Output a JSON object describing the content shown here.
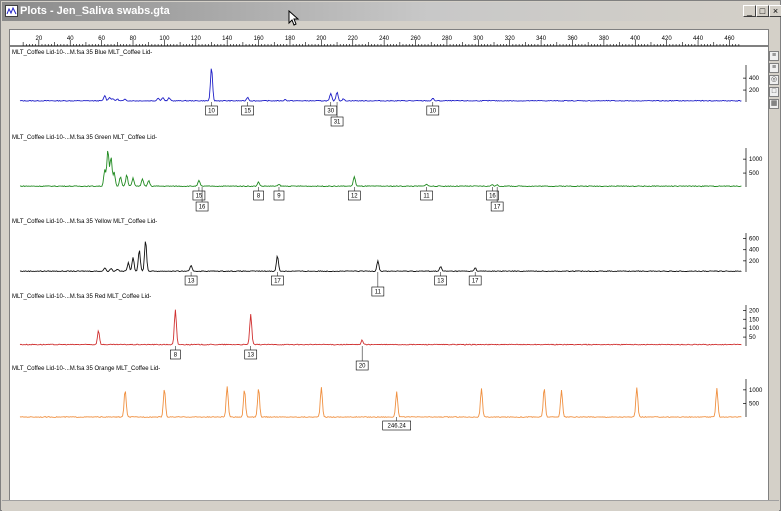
{
  "window": {
    "title": "Plots - Jen_Saliva swabs.gta"
  },
  "ruler": {
    "ticks": [
      "20",
      "40",
      "60",
      "80",
      "100",
      "120",
      "140",
      "160",
      "180",
      "200",
      "220",
      "240",
      "260",
      "280",
      "300",
      "320",
      "340",
      "360",
      "380",
      "400",
      "420",
      "440",
      "460"
    ]
  },
  "chart_data": [
    {
      "type": "line",
      "panel": "blue",
      "title": "MLT_Coffee Lid-10-...M.fsa 35 Blue    MLT_Coffee Lid-",
      "color": "#2020c8",
      "xlim": [
        8,
        468
      ],
      "ylim": [
        0,
        620
      ],
      "y_ticks": [
        "400",
        "200"
      ],
      "y_tick_values": [
        400,
        200
      ],
      "baseline": 20,
      "peaks": [
        [
          62,
          90
        ],
        [
          65,
          60
        ],
        [
          67,
          40
        ],
        [
          70,
          30
        ],
        [
          75,
          25
        ],
        [
          96,
          50
        ],
        [
          99,
          60
        ],
        [
          103,
          50
        ],
        [
          130,
          560
        ],
        [
          153,
          60
        ],
        [
          177,
          20
        ],
        [
          206,
          120
        ],
        [
          210,
          150
        ],
        [
          214,
          30
        ],
        [
          271,
          40
        ]
      ],
      "peak_labels": [
        {
          "x": 130,
          "text": "10",
          "row": 1
        },
        {
          "x": 153,
          "text": "15",
          "row": 1
        },
        {
          "x": 206,
          "text": "30",
          "row": 1
        },
        {
          "x": 210,
          "text": "31",
          "row": 2
        },
        {
          "x": 271,
          "text": "10",
          "row": 1
        }
      ]
    },
    {
      "type": "line",
      "panel": "green",
      "title": "MLT_Coffee Lid-10-...M.fsa 35 Green    MLT_Coffee Lid-",
      "color": "#208a20",
      "xlim": [
        8,
        468
      ],
      "ylim": [
        0,
        1400
      ],
      "y_ticks": [
        "1000",
        "500"
      ],
      "y_tick_values": [
        1000,
        500
      ],
      "baseline": 30,
      "peaks": [
        [
          62,
          600
        ],
        [
          64,
          1300
        ],
        [
          66,
          1050
        ],
        [
          68,
          500
        ],
        [
          72,
          350
        ],
        [
          76,
          400
        ],
        [
          80,
          300
        ],
        [
          86,
          250
        ],
        [
          90,
          200
        ],
        [
          122,
          200
        ],
        [
          160,
          150
        ],
        [
          173,
          60
        ],
        [
          221,
          350
        ],
        [
          267,
          80
        ],
        [
          309,
          60
        ],
        [
          312,
          40
        ]
      ],
      "peak_labels": [
        {
          "x": 122,
          "text": "15",
          "row": 1
        },
        {
          "x": 124,
          "text": "16",
          "row": 2
        },
        {
          "x": 160,
          "text": "8",
          "row": 1
        },
        {
          "x": 173,
          "text": "9",
          "row": 1
        },
        {
          "x": 221,
          "text": "12",
          "row": 1
        },
        {
          "x": 267,
          "text": "11",
          "row": 1
        },
        {
          "x": 309,
          "text": "16",
          "row": 1
        },
        {
          "x": 312,
          "text": "17",
          "row": 2
        }
      ]
    },
    {
      "type": "line",
      "panel": "yellow",
      "title": "MLT_Coffee Lid-10-...M.fsa 35 Yellow    MLT_Coffee Lid-",
      "color": "#101010",
      "xlim": [
        8,
        468
      ],
      "ylim": [
        0,
        700
      ],
      "y_ticks": [
        "600",
        "400",
        "200"
      ],
      "y_tick_values": [
        600,
        400,
        200
      ],
      "baseline": 15,
      "peaks": [
        [
          62,
          60
        ],
        [
          66,
          50
        ],
        [
          70,
          40
        ],
        [
          77,
          150
        ],
        [
          80,
          250
        ],
        [
          84,
          380
        ],
        [
          88,
          560
        ],
        [
          117,
          100
        ],
        [
          172,
          280
        ],
        [
          236,
          190
        ],
        [
          276,
          80
        ],
        [
          298,
          60
        ]
      ],
      "peak_labels": [
        {
          "x": 117,
          "text": "13",
          "row": 1
        },
        {
          "x": 172,
          "text": "17",
          "row": 1
        },
        {
          "x": 236,
          "text": "11",
          "row": 2
        },
        {
          "x": 276,
          "text": "13",
          "row": 1
        },
        {
          "x": 298,
          "text": "17",
          "row": 1
        }
      ]
    },
    {
      "type": "line",
      "panel": "red",
      "title": "MLT_Coffee Lid-10-...M.fsa 35 Red    MLT_Coffee Lid-",
      "color": "#d03030",
      "xlim": [
        8,
        468
      ],
      "ylim": [
        0,
        230
      ],
      "y_ticks": [
        "200",
        "150",
        "100",
        "50"
      ],
      "y_tick_values": [
        200,
        150,
        100,
        50
      ],
      "baseline": 8,
      "peaks": [
        [
          58,
          80
        ],
        [
          107,
          195
        ],
        [
          155,
          170
        ],
        [
          226,
          25
        ]
      ],
      "peak_labels": [
        {
          "x": 107,
          "text": "8",
          "row": 1
        },
        {
          "x": 155,
          "text": "13",
          "row": 1
        },
        {
          "x": 226,
          "text": "20",
          "row": 2
        }
      ]
    },
    {
      "type": "line",
      "panel": "orange",
      "title": "MLT_Coffee Lid-10-...M.fsa 35 Orange    MLT_Coffee Lid-",
      "color": "#f09040",
      "xlim": [
        8,
        468
      ],
      "ylim": [
        0,
        1400
      ],
      "y_ticks": [
        "1000",
        "500"
      ],
      "y_tick_values": [
        1000,
        500
      ],
      "baseline": 0,
      "peaks": [
        [
          75,
          1000
        ],
        [
          100,
          1050
        ],
        [
          140,
          1120
        ],
        [
          151,
          1020
        ],
        [
          160,
          1060
        ],
        [
          200,
          1100
        ],
        [
          248,
          950
        ],
        [
          302,
          1050
        ],
        [
          342,
          1080
        ],
        [
          353,
          1000
        ],
        [
          401,
          1080
        ],
        [
          452,
          1050
        ]
      ],
      "peak_labels": [
        {
          "x": 248,
          "text": "246.24",
          "row": 1
        }
      ]
    }
  ]
}
